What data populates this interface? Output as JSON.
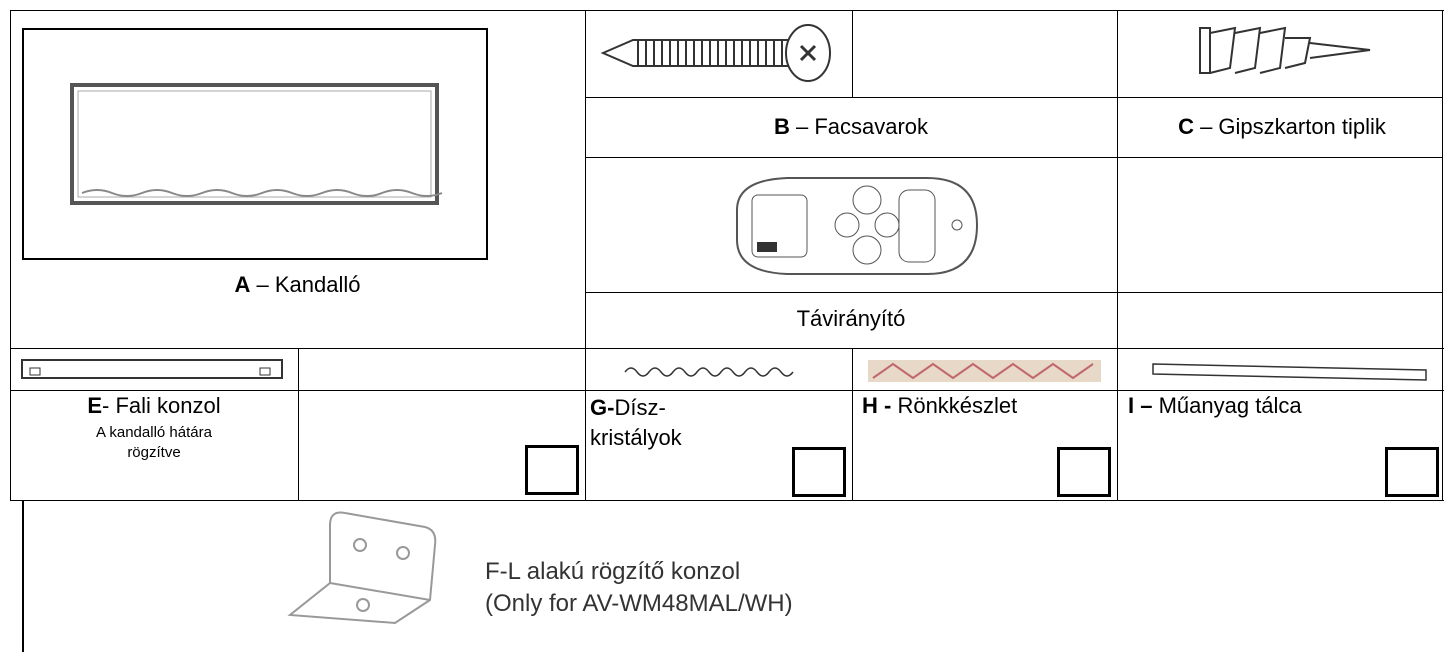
{
  "parts": [
    {
      "bold": "A",
      "text": " – Kandalló"
    },
    {
      "bold": "B",
      "text": " – Facsavarok"
    },
    {
      "bold": "C",
      "text": " – Gipszkarton tiplik"
    },
    {
      "text": "Távirányító"
    },
    {
      "bold": "E",
      "text": "- Fali konzol",
      "note_lines": [
        "A kandalló hátára",
        "rögzítve"
      ]
    },
    {
      "bold": "G-",
      "text": "Dísz-kristályok"
    },
    {
      "bold": "H -",
      "text": " Rönkkészlet"
    },
    {
      "bold": "I –",
      "text": " Műanyag tálca"
    }
  ],
  "bracket": {
    "lines": [
      "F-L alakú rögzítő konzol",
      "(Only for AV-WM48MAL/WH)"
    ]
  }
}
